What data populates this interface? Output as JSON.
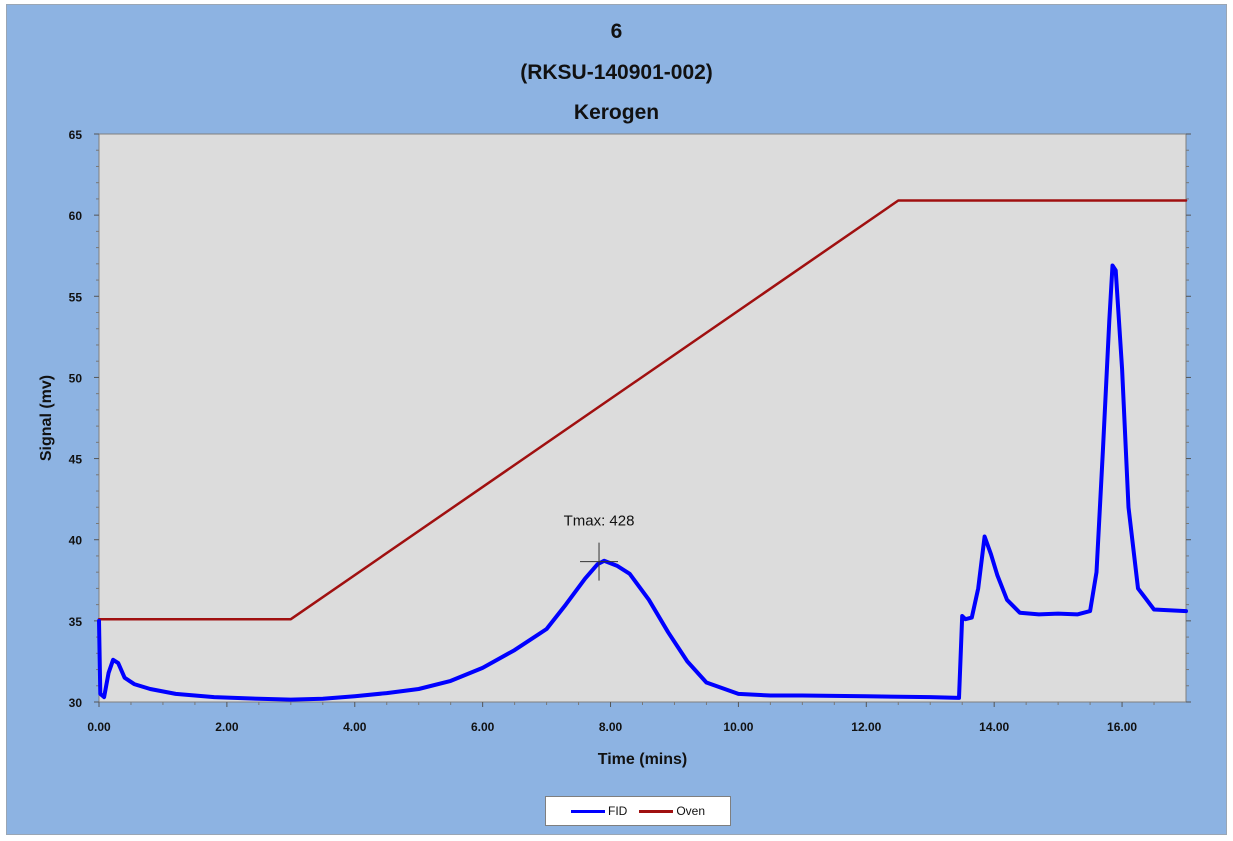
{
  "chart_data": {
    "type": "line",
    "title": [
      "6",
      "(RKSU-140901-002)",
      "Kerogen"
    ],
    "xlabel": "Time (mins)",
    "ylabel": "Signal (mv)",
    "xlim": [
      0,
      17
    ],
    "ylim": [
      30,
      65
    ],
    "x_ticks": [
      "0.00",
      "2.00",
      "4.00",
      "6.00",
      "8.00",
      "10.00",
      "12.00",
      "14.00",
      "16.00"
    ],
    "y_ticks": [
      "30",
      "35",
      "40",
      "45",
      "50",
      "55",
      "60",
      "65"
    ],
    "grid": false,
    "legend_position": "bottom",
    "series": [
      {
        "name": "FID",
        "color": "#0000ff",
        "x": [
          0,
          0.02,
          0.08,
          0.15,
          0.22,
          0.3,
          0.4,
          0.55,
          0.8,
          1.2,
          1.8,
          2.5,
          3.0,
          3.5,
          4.0,
          4.5,
          5.0,
          5.5,
          6.0,
          6.5,
          7.0,
          7.3,
          7.6,
          7.8,
          7.9,
          8.1,
          8.3,
          8.6,
          8.9,
          9.2,
          9.5,
          10.0,
          10.5,
          11.0,
          12.0,
          13.0,
          13.45,
          13.5,
          13.55,
          13.65,
          13.75,
          13.85,
          13.95,
          14.05,
          14.2,
          14.4,
          14.7,
          15.0,
          15.3,
          15.5,
          15.6,
          15.7,
          15.8,
          15.85,
          15.9,
          16.0,
          16.1,
          16.25,
          16.5,
          17.0
        ],
        "y": [
          35,
          30.5,
          30.3,
          31.8,
          32.6,
          32.4,
          31.5,
          31.1,
          30.8,
          30.5,
          30.3,
          30.2,
          30.15,
          30.2,
          30.35,
          30.55,
          30.8,
          31.3,
          32.1,
          33.2,
          34.5,
          36.0,
          37.6,
          38.5,
          38.7,
          38.4,
          37.9,
          36.3,
          34.3,
          32.5,
          31.2,
          30.5,
          30.4,
          30.4,
          30.35,
          30.3,
          30.25,
          35.3,
          35.1,
          35.2,
          37.0,
          40.2,
          39.1,
          37.8,
          36.3,
          35.5,
          35.4,
          35.45,
          35.4,
          35.6,
          38.0,
          45.5,
          53.5,
          56.9,
          56.6,
          50.5,
          42.0,
          37.0,
          35.7,
          35.6
        ]
      },
      {
        "name": "Oven",
        "color": "#a01010",
        "x": [
          0,
          3.0,
          12.5,
          17
        ],
        "y": [
          35.1,
          35.1,
          60.9,
          60.9
        ]
      }
    ],
    "annotations": [
      {
        "text": "Tmax: 428",
        "x": 7.82,
        "y": 38.65
      }
    ]
  }
}
